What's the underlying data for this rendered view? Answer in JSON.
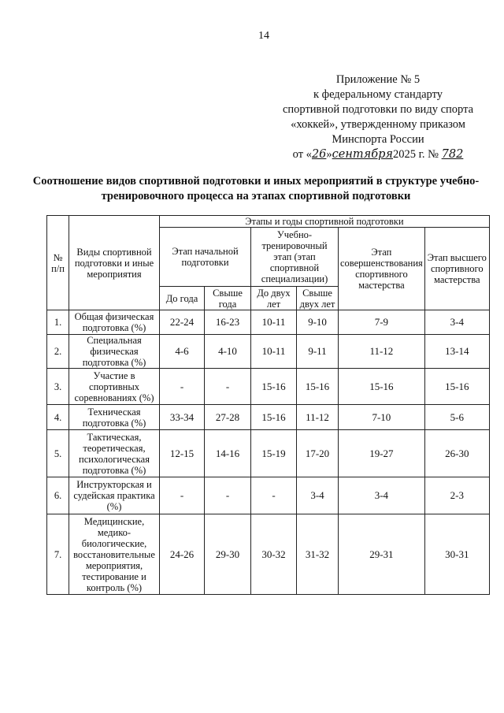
{
  "page_number": "14",
  "header": {
    "lines": [
      "Приложение № 5",
      "к федеральному стандарту",
      "спортивной подготовки по виду спорта",
      "«хоккей», утвержденному приказом",
      "Минспорта России"
    ],
    "date_prefix": "от «",
    "day": "26",
    "date_mid": "»",
    "month": "сентября",
    "year_text": "2025 г. №",
    "number": "782"
  },
  "title": "Соотношение видов спортивной подготовки и иных мероприятий в структуре учебно-тренировочного процесса на этапах спортивной подготовки",
  "table": {
    "col_num": "№ п/п",
    "col_kind": "Виды спортивной подготовки и иные мероприятия",
    "stages_header": "Этапы и годы спортивной подготовки",
    "stage1": "Этап начальной подготовки",
    "stage2": "Учебно-тренировочный этап (этап спортивной специализации)",
    "stage3": "Этап совершенствования спортивного мастерства",
    "stage4": "Этап высшего спортивного мастерства",
    "sub1": "До года",
    "sub2": "Свыше года",
    "sub3": "До двух лет",
    "sub4": "Свыше двух лет",
    "rows": [
      {
        "n": "1.",
        "name": "Общая физическая подготовка (%)",
        "v": [
          "22-24",
          "16-23",
          "10-11",
          "9-10",
          "7-9",
          "3-4"
        ]
      },
      {
        "n": "2.",
        "name": "Специальная физическая подготовка (%)",
        "v": [
          "4-6",
          "4-10",
          "10-11",
          "9-11",
          "11-12",
          "13-14"
        ]
      },
      {
        "n": "3.",
        "name": "Участие в спортивных соревнованиях (%)",
        "v": [
          "-",
          "-",
          "15-16",
          "15-16",
          "15-16",
          "15-16"
        ]
      },
      {
        "n": "4.",
        "name": "Техническая подготовка (%)",
        "v": [
          "33-34",
          "27-28",
          "15-16",
          "11-12",
          "7-10",
          "5-6"
        ]
      },
      {
        "n": "5.",
        "name": "Тактическая, теоретическая, психологическая подготовка (%)",
        "v": [
          "12-15",
          "14-16",
          "15-19",
          "17-20",
          "19-27",
          "26-30"
        ]
      },
      {
        "n": "6.",
        "name": "Инструкторская и судейская практика (%)",
        "v": [
          "-",
          "-",
          "-",
          "3-4",
          "3-4",
          "2-3"
        ]
      },
      {
        "n": "7.",
        "name": "Медицинские, медико-биологические, восстановительные мероприятия, тестирование и контроль (%)",
        "v": [
          "24-26",
          "29-30",
          "30-32",
          "31-32",
          "29-31",
          "30-31"
        ]
      }
    ]
  }
}
